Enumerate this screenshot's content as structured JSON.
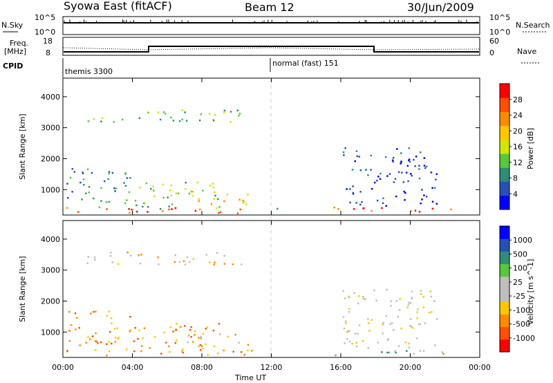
{
  "header": {
    "station": "Syowa East (fitACF)",
    "beam": "Beam 12",
    "date": "30/Jun/2009"
  },
  "top_panels": {
    "nsky_label": "N.Sky",
    "nsky_ticks": [
      "10^5",
      "10^0"
    ],
    "nsearch_label": "N.Search",
    "nsearch_ticks": [
      "10^5",
      "10^0"
    ],
    "freq_label_1": "Freq.",
    "freq_label_2": "[MHz]",
    "freq_ticks": [
      "18",
      "8"
    ],
    "nave_label": "Nave",
    "nave_ticks": [
      "60",
      "0"
    ],
    "cpid_label": "CPID",
    "cpid_1": "normal (fast) 151",
    "cpid_2": "themis 3300"
  },
  "colors": {
    "power_scale": [
      "#0000ff",
      "#2850b4",
      "#2e8c78",
      "#5ac83c",
      "#d2e600",
      "#ffc800",
      "#ff8c00",
      "#ff5000",
      "#ff0000"
    ],
    "velocity_scale": [
      "#ff0000",
      "#ff5000",
      "#ff8c00",
      "#ffc800",
      "#bebebe",
      "#bebebe",
      "#5ac83c",
      "#2e8c78",
      "#2850b4",
      "#0000ff"
    ]
  },
  "chart_data": [
    {
      "type": "heatmap",
      "name": "power",
      "ylabel": "Slant Range [km]",
      "colorbar_label": "Power [dB]",
      "colorbar_ticks": [
        "28",
        "24",
        "20",
        "16",
        "12",
        "8",
        "4"
      ],
      "yticks": [
        "4000",
        "3000",
        "2000",
        "1000"
      ],
      "xticks": [
        "00:00",
        "04:00",
        "08:00",
        "12:00",
        "16:00",
        "20:00",
        "00:00"
      ],
      "ylim": [
        180,
        4600
      ],
      "xlim_hours": [
        0,
        24
      ],
      "regions": [
        {
          "h0": 0.2,
          "h1": 11.0,
          "r0": 250,
          "r1": 450,
          "lvl": 7
        },
        {
          "h0": 0.2,
          "h1": 4.0,
          "r0": 450,
          "r1": 1700,
          "lvl": 2
        },
        {
          "h0": 4.0,
          "h1": 9.0,
          "r0": 400,
          "r1": 1300,
          "lvl": 3
        },
        {
          "h0": 7.0,
          "h1": 10.8,
          "r0": 550,
          "r1": 1000,
          "lvl": 5
        },
        {
          "h0": 1.0,
          "h1": 10.5,
          "r0": 3200,
          "r1": 3600,
          "lvl": 3
        },
        {
          "h0": 12.3,
          "h1": 12.8,
          "r0": 200,
          "r1": 450,
          "lvl": 1
        },
        {
          "h0": 15.5,
          "h1": 22.5,
          "r0": 250,
          "r1": 450,
          "lvl": 7
        },
        {
          "h0": 16.0,
          "h1": 21.5,
          "r0": 500,
          "r1": 2400,
          "lvl": 1
        }
      ]
    },
    {
      "type": "heatmap",
      "name": "velocity",
      "ylabel": "Slant Range [km]",
      "colorbar_label": "Velocity [m s^-1]",
      "colorbar_ticks": [
        "1000",
        "500",
        "100",
        "25",
        "-25",
        "-100",
        "-500",
        "-1000"
      ],
      "yticks": [
        "4000",
        "3000",
        "2000",
        "1000"
      ],
      "xticks": [
        "00:00",
        "04:00",
        "08:00",
        "12:00",
        "16:00",
        "20:00",
        "00:00"
      ],
      "xlabel": "Time UT",
      "ylim": [
        180,
        4600
      ],
      "xlim_hours": [
        0,
        24
      ],
      "regions": [
        {
          "h0": 0.2,
          "h1": 11.0,
          "r0": 250,
          "r1": 450,
          "lvl": 2
        },
        {
          "h0": 0.2,
          "h1": 4.0,
          "r0": 450,
          "r1": 1700,
          "lvl": 2
        },
        {
          "h0": 4.0,
          "h1": 9.0,
          "r0": 400,
          "r1": 1300,
          "lvl": 2
        },
        {
          "h0": 7.0,
          "h1": 10.8,
          "r0": 550,
          "r1": 1000,
          "lvl": 3
        },
        {
          "h0": 1.0,
          "h1": 10.5,
          "r0": 3200,
          "r1": 3600,
          "lvl": 3
        },
        {
          "h0": 15.5,
          "h1": 22.5,
          "r0": 250,
          "r1": 450,
          "lvl": 6
        },
        {
          "h0": 16.0,
          "h1": 21.5,
          "r0": 500,
          "r1": 2400,
          "lvl": 4
        }
      ]
    }
  ]
}
